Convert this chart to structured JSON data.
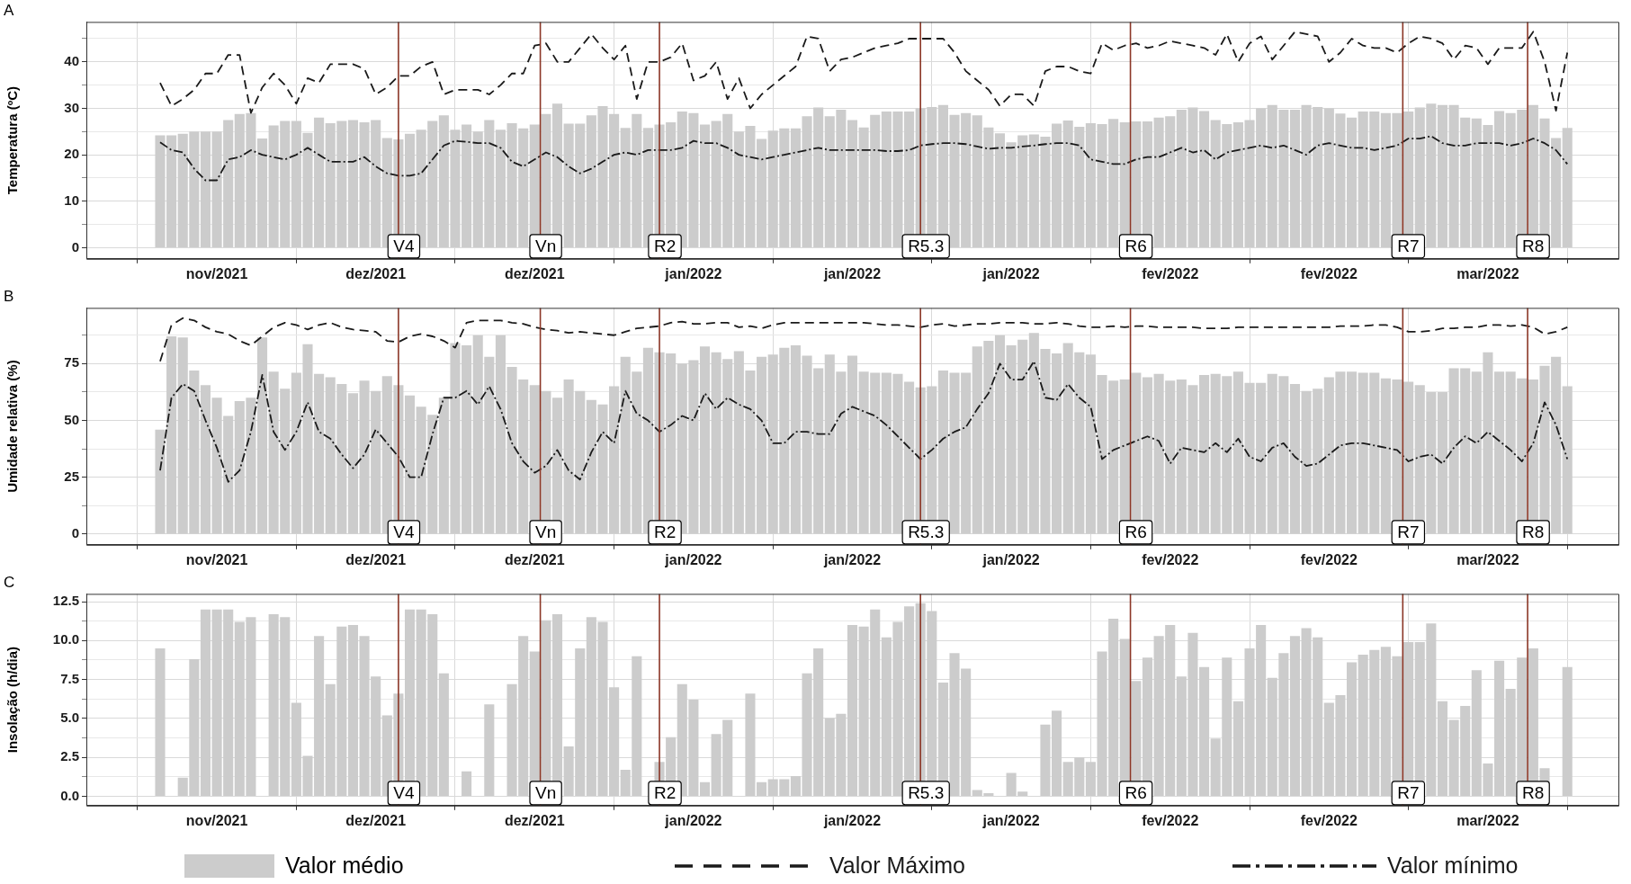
{
  "chart_data": [
    {
      "type": "bar",
      "title": "A",
      "ylabel": "Temperatura (ºC)",
      "x": [
        "2021-11-17",
        "2021-11-18",
        "2021-11-19",
        "2021-11-20",
        "2021-11-21",
        "2021-11-22",
        "2021-11-23",
        "2021-11-24",
        "2021-11-25",
        "2021-11-26",
        "2021-11-27",
        "2021-11-28",
        "2021-11-29",
        "2021-11-30",
        "2021-12-01",
        "2021-12-02",
        "2021-12-03",
        "2021-12-04",
        "2021-12-05",
        "2021-12-06",
        "2021-12-07",
        "2021-12-08",
        "2021-12-09",
        "2021-12-10",
        "2021-12-11",
        "2021-12-12",
        "2021-12-13",
        "2021-12-14",
        "2021-12-15",
        "2021-12-16",
        "2021-12-17",
        "2021-12-18",
        "2021-12-19",
        "2021-12-20",
        "2021-12-21",
        "2021-12-22",
        "2021-12-23",
        "2021-12-24",
        "2021-12-25",
        "2021-12-26",
        "2021-12-27",
        "2021-12-28",
        "2021-12-29",
        "2021-12-30",
        "2021-12-31",
        "2022-01-01",
        "2022-01-02",
        "2022-01-03",
        "2022-01-04",
        "2022-01-05",
        "2022-01-06",
        "2022-01-07",
        "2022-01-08",
        "2022-01-09",
        "2022-01-10",
        "2022-01-11",
        "2022-01-12",
        "2022-01-13",
        "2022-01-14",
        "2022-01-15",
        "2022-01-16",
        "2022-01-17",
        "2022-01-18",
        "2022-01-19",
        "2022-01-20",
        "2022-01-21",
        "2022-01-22",
        "2022-01-23",
        "2022-01-24",
        "2022-01-25",
        "2022-01-26",
        "2022-01-27",
        "2022-01-28",
        "2022-01-29",
        "2022-01-30",
        "2022-01-31",
        "2022-02-01",
        "2022-02-02",
        "2022-02-03",
        "2022-02-04",
        "2022-02-05",
        "2022-02-06",
        "2022-02-07",
        "2022-02-08",
        "2022-02-09",
        "2022-02-10",
        "2022-02-11",
        "2022-02-12",
        "2022-02-13",
        "2022-02-14",
        "2022-02-15",
        "2022-02-16",
        "2022-02-17",
        "2022-02-18",
        "2022-02-19",
        "2022-02-20",
        "2022-02-21",
        "2022-02-22",
        "2022-02-23",
        "2022-02-24",
        "2022-02-25",
        "2022-02-26",
        "2022-02-27",
        "2022-02-28",
        "2022-03-01",
        "2022-03-02",
        "2022-03-03",
        "2022-03-04",
        "2022-03-05",
        "2022-03-06",
        "2022-03-07",
        "2022-03-08",
        "2022-03-09",
        "2022-03-10",
        "2022-03-11",
        "2022-03-12",
        "2022-03-13",
        "2022-03-14",
        "2022-03-15",
        "2022-03-16",
        "2022-03-17",
        "2022-03-18",
        "2022-03-19",
        "2022-03-20",
        "2022-03-21"
      ],
      "series": [
        {
          "name": "Valor médio",
          "color": "#cccccc",
          "values": [
            24.2,
            24.2,
            24.5,
            25,
            25,
            25,
            27.5,
            28.8,
            29,
            23.5,
            26.3,
            27.3,
            27.3,
            24.7,
            28,
            26.8,
            27.3,
            27.5,
            27,
            27.5,
            23.6,
            23.3,
            24.5,
            25.4,
            27.3,
            28.5,
            25.4,
            26.5,
            25,
            27.5,
            25.4,
            26.8,
            25.7,
            26.5,
            28.8,
            31,
            26.7,
            26.7,
            28.5,
            30.5,
            28.8,
            25.8,
            28.8,
            25.8,
            26.5,
            27,
            29.3,
            29,
            26.5,
            27.3,
            28.8,
            25,
            26.2,
            23.4,
            25.2,
            25.7,
            25.7,
            28.3,
            30.2,
            28.3,
            29.7,
            27.5,
            25.9,
            28.6,
            29.3,
            29.3,
            29.3,
            30,
            30.3,
            30.7,
            28.6,
            29,
            28.5,
            25.9,
            24.6,
            22.7,
            24.2,
            24.4,
            23.9,
            26.7,
            27.4,
            26,
            26.8,
            26.6,
            27.7,
            27,
            27.2,
            27.2,
            28,
            28.3,
            29.7,
            30.2,
            29.4,
            27.5,
            26.6,
            27,
            27.5,
            30,
            30.7,
            29.7,
            29.7,
            30.7,
            30.3,
            30,
            28.9,
            28,
            29.3,
            29.3,
            29,
            29,
            29.3,
            30.2,
            31,
            30.7,
            30.7,
            28,
            27.8,
            26.4,
            29.4,
            29,
            29.7,
            30.7,
            27.8,
            23.6,
            25.8
          ]
        },
        {
          "type": "line",
          "name": "Valor Máximo",
          "color": "#1a1a1a",
          "line_style": "dashed",
          "values": [
            35.5,
            30.5,
            32,
            34,
            37.5,
            37.5,
            41.5,
            41.5,
            29,
            34.5,
            37.5,
            35,
            31,
            36.5,
            35.5,
            39.5,
            39.5,
            39.5,
            38.5,
            33,
            34.5,
            37,
            37,
            39,
            40,
            33,
            34,
            34,
            34,
            33,
            35,
            37.5,
            37.5,
            43.5,
            44,
            40,
            40,
            43,
            46,
            43,
            40.5,
            43.5,
            32,
            40,
            40,
            41,
            44,
            36,
            37,
            40,
            32,
            36.5,
            30,
            33,
            35,
            37,
            39,
            45.5,
            45,
            38,
            40.5,
            41,
            42,
            43,
            43.5,
            44,
            45,
            45,
            45,
            45,
            42,
            38,
            36,
            34,
            30.5,
            33,
            33,
            30.5,
            38,
            39,
            39,
            38,
            37.5,
            44,
            42.5,
            43.5,
            44,
            43,
            43.5,
            44.5,
            44,
            43.5,
            43,
            41.5,
            46,
            40,
            44,
            45.5,
            40.5,
            43.5,
            46.5,
            46,
            45.5,
            40,
            42,
            45,
            43.5,
            43,
            43,
            42,
            44,
            45.5,
            45,
            44,
            40.5,
            43.5,
            43,
            39.5,
            43,
            43,
            43,
            46.5,
            40,
            29.5,
            42
          ]
        },
        {
          "type": "line",
          "name": "Valor mínimo",
          "color": "#1a1a1a",
          "line_style": "dashdot",
          "values": [
            22.7,
            21,
            20.5,
            17,
            14.5,
            14.5,
            19,
            19.5,
            21,
            20,
            19.5,
            19,
            20,
            21.5,
            20,
            18.5,
            18.5,
            18.5,
            19.5,
            17.5,
            16,
            15.5,
            15.5,
            16,
            19,
            22,
            23,
            22.8,
            22.5,
            22.5,
            21.5,
            18.5,
            17.5,
            19,
            20.5,
            19.5,
            17.5,
            16,
            17,
            18.5,
            20,
            20.5,
            20,
            21,
            21,
            21,
            21.5,
            23,
            22.5,
            22.5,
            21.5,
            20,
            19.5,
            19,
            19.5,
            20,
            20.5,
            21,
            21.5,
            21,
            21,
            21,
            21,
            21,
            20.8,
            20.8,
            21,
            22,
            22.3,
            22.5,
            22.5,
            22.3,
            21.8,
            21.3,
            21.5,
            21.5,
            21.8,
            22,
            22.3,
            22.5,
            22.5,
            22,
            19,
            18.5,
            18,
            18,
            19,
            19.5,
            19.5,
            20.5,
            21.5,
            20.5,
            21,
            19,
            20.5,
            21,
            21.5,
            22,
            21.5,
            22,
            21,
            20,
            22,
            22.5,
            22,
            21.5,
            21.5,
            21,
            21.5,
            22,
            23.5,
            23.5,
            24,
            22.5,
            22,
            22,
            22.5,
            22.5,
            22.5,
            22,
            22.5,
            23.5,
            22.5,
            21,
            18
          ]
        }
      ],
      "xlim": [
        "2021-11-10T12:00",
        "2022-03-25T12:00"
      ],
      "xticks": [
        {
          "value": "2021-11-22",
          "label": "nov/2021"
        },
        {
          "value": "2021-12-06",
          "label": "dez/2021"
        },
        {
          "value": "2021-12-20",
          "label": "dez/2021"
        },
        {
          "value": "2022-01-03",
          "label": "jan/2022"
        },
        {
          "value": "2022-01-17",
          "label": "jan/2022"
        },
        {
          "value": "2022-01-31",
          "label": "jan/2022"
        },
        {
          "value": "2022-02-14",
          "label": "fev/2022"
        },
        {
          "value": "2022-02-28",
          "label": "fev/2022"
        },
        {
          "value": "2022-03-14",
          "label": "mar/2022"
        }
      ],
      "ylim": [
        -2.4,
        48.6
      ],
      "yticks": [
        0,
        {
          "value": 5,
          "label": null
        },
        10,
        {
          "value": 15,
          "label": null
        },
        20,
        {
          "value": 25,
          "label": null
        },
        30,
        {
          "value": 35,
          "label": null
        },
        40,
        {
          "value": 45,
          "label": null
        }
      ],
      "ref_lines": [
        {
          "axis": "x",
          "value": "2021-12-08",
          "label": "V4",
          "color": "#8b3626"
        },
        {
          "axis": "x",
          "value": "2021-12-20T12:00",
          "label": "Vn",
          "color": "#8b3626"
        },
        {
          "axis": "x",
          "value": "2021-12-31",
          "label": "R2",
          "color": "#8b3626"
        },
        {
          "axis": "x",
          "value": "2022-01-23",
          "label": "R5.3",
          "color": "#8b3626"
        },
        {
          "axis": "x",
          "value": "2022-02-10T12:00",
          "label": "R6",
          "color": "#8b3626"
        },
        {
          "axis": "x",
          "value": "2022-03-06T12:00",
          "label": "R7",
          "color": "#8b3626"
        },
        {
          "axis": "x",
          "value": "2022-03-17T12:00",
          "label": "R8",
          "color": "#8b3626"
        }
      ],
      "grid": true,
      "legend": "bottom"
    },
    {
      "type": "bar",
      "title": "B",
      "ylabel": "Umidade relativa (%)",
      "x": [
        "2021-11-17",
        "2021-11-18",
        "2021-11-19",
        "2021-11-20",
        "2021-11-21",
        "2021-11-22",
        "2021-11-23",
        "2021-11-24",
        "2021-11-25",
        "2021-11-26",
        "2021-11-27",
        "2021-11-28",
        "2021-11-29",
        "2021-11-30",
        "2021-12-01",
        "2021-12-02",
        "2021-12-03",
        "2021-12-04",
        "2021-12-05",
        "2021-12-06",
        "2021-12-07",
        "2021-12-08",
        "2021-12-09",
        "2021-12-10",
        "2021-12-11",
        "2021-12-12",
        "2021-12-13",
        "2021-12-14",
        "2021-12-15",
        "2021-12-16",
        "2021-12-17",
        "2021-12-18",
        "2021-12-19",
        "2021-12-20",
        "2021-12-21",
        "2021-12-22",
        "2021-12-23",
        "2021-12-24",
        "2021-12-25",
        "2021-12-26",
        "2021-12-27",
        "2021-12-28",
        "2021-12-29",
        "2021-12-30",
        "2021-12-31",
        "2022-01-01",
        "2022-01-02",
        "2022-01-03",
        "2022-01-04",
        "2022-01-05",
        "2022-01-06",
        "2022-01-07",
        "2022-01-08",
        "2022-01-09",
        "2022-01-10",
        "2022-01-11",
        "2022-01-12",
        "2022-01-13",
        "2022-01-14",
        "2022-01-15",
        "2022-01-16",
        "2022-01-17",
        "2022-01-18",
        "2022-01-19",
        "2022-01-20",
        "2022-01-21",
        "2022-01-22",
        "2022-01-23",
        "2022-01-24",
        "2022-01-25",
        "2022-01-26",
        "2022-01-27",
        "2022-01-28",
        "2022-01-29",
        "2022-01-30",
        "2022-01-31",
        "2022-02-01",
        "2022-02-02",
        "2022-02-03",
        "2022-02-04",
        "2022-02-05",
        "2022-02-06",
        "2022-02-07",
        "2022-02-08",
        "2022-02-09",
        "2022-02-10",
        "2022-02-11",
        "2022-02-12",
        "2022-02-13",
        "2022-02-14",
        "2022-02-15",
        "2022-02-16",
        "2022-02-17",
        "2022-02-18",
        "2022-02-19",
        "2022-02-20",
        "2022-02-21",
        "2022-02-22",
        "2022-02-23",
        "2022-02-24",
        "2022-02-25",
        "2022-02-26",
        "2022-02-27",
        "2022-02-28",
        "2022-03-01",
        "2022-03-02",
        "2022-03-03",
        "2022-03-04",
        "2022-03-05",
        "2022-03-06",
        "2022-03-07",
        "2022-03-08",
        "2022-03-09",
        "2022-03-10",
        "2022-03-11",
        "2022-03-12",
        "2022-03-13",
        "2022-03-14",
        "2022-03-15",
        "2022-03-16",
        "2022-03-17",
        "2022-03-18",
        "2022-03-19",
        "2022-03-20",
        "2022-03-21"
      ],
      "series": [
        {
          "color": "#cccccc",
          "values": [
            46,
            87,
            86.5,
            72,
            65.5,
            60,
            52,
            58.5,
            60,
            86.5,
            71.5,
            64,
            71,
            83.5,
            70.5,
            69,
            66,
            62,
            67.5,
            63,
            69.5,
            65.5,
            61,
            56,
            52.5,
            60,
            84,
            83,
            87.5,
            78,
            87.5,
            73.5,
            68,
            65.5,
            63,
            60,
            68,
            63,
            59,
            57,
            65,
            78,
            71.5,
            82,
            80,
            79.5,
            75,
            76.5,
            82.5,
            80,
            77,
            80.5,
            72,
            78,
            79,
            82,
            83,
            78.5,
            73,
            79,
            71.5,
            78.5,
            71.5,
            71,
            71,
            70.5,
            67,
            64.5,
            65,
            72,
            71,
            71,
            82.5,
            85,
            87.5,
            83,
            85.5,
            88.5,
            81.5,
            79.5,
            84,
            80,
            79,
            70,
            67.5,
            68,
            71,
            69,
            70.5,
            67.5,
            68,
            65.5,
            70,
            70.5,
            69.5,
            71.5,
            66.5,
            66.5,
            70.5,
            69.5,
            66,
            63,
            64,
            69,
            71.5,
            71.5,
            71,
            71,
            68.5,
            68,
            67,
            65.5,
            62.5,
            62.5,
            73,
            73,
            71.5,
            80,
            71.5,
            71.5,
            68.5,
            68,
            74,
            78,
            65
          ]
        },
        {
          "type": "line",
          "color": "#1a1a1a",
          "line_style": "dashed",
          "values": [
            76,
            92,
            95,
            94,
            91,
            89,
            88,
            85,
            83,
            87,
            91,
            93,
            92,
            90,
            92,
            93,
            91,
            90,
            89.5,
            89,
            85,
            84.5,
            87,
            88,
            87,
            85,
            82,
            93,
            94,
            94,
            94,
            93,
            92.5,
            91,
            90,
            89.5,
            88.5,
            89,
            88.5,
            88,
            87.5,
            89,
            90.5,
            91,
            91.5,
            93,
            93.5,
            92.5,
            92.5,
            93,
            93,
            91,
            91.5,
            90.5,
            92,
            93,
            93,
            93,
            93,
            93,
            93,
            93,
            93,
            92.5,
            92,
            92,
            91.5,
            91,
            92,
            92.5,
            91.5,
            92,
            92.5,
            92.5,
            93,
            93,
            93,
            92.5,
            92.5,
            93,
            92.5,
            91.5,
            91,
            91,
            91.5,
            91,
            91.5,
            91.5,
            91,
            91,
            91,
            91,
            90.5,
            90.5,
            90.5,
            91,
            91,
            91,
            91,
            91,
            91,
            91,
            91,
            91,
            91.5,
            91.5,
            91.5,
            92,
            92,
            91,
            89,
            89,
            89.5,
            90.5,
            90.5,
            91,
            91,
            92,
            92,
            91.5,
            92,
            91,
            88,
            89,
            91
          ]
        },
        {
          "type": "line",
          "color": "#1a1a1a",
          "line_style": "dashdot",
          "values": [
            28,
            60,
            66,
            63,
            50,
            38,
            23,
            28,
            45,
            70,
            45,
            37,
            45,
            58,
            45,
            42,
            35,
            29,
            35,
            46,
            40,
            34,
            25,
            25,
            44,
            60,
            60,
            63,
            57,
            65,
            55,
            40,
            32,
            27,
            30,
            37,
            28,
            24,
            36,
            45,
            40,
            63,
            53,
            50,
            45,
            48,
            52,
            50,
            62,
            55,
            60,
            57,
            55,
            50,
            40,
            40,
            45,
            45,
            44,
            44,
            53,
            56,
            54,
            52,
            48,
            43,
            38,
            33,
            37,
            42,
            45,
            47,
            55,
            62,
            75,
            68,
            68,
            76,
            60,
            59,
            66,
            60,
            56,
            33,
            37,
            39,
            41,
            43,
            41,
            31,
            38,
            37,
            36,
            40,
            36,
            42,
            34,
            32,
            38,
            40,
            34,
            30,
            31,
            35,
            39,
            40,
            40,
            39,
            38,
            37,
            32,
            34,
            35,
            31,
            38,
            43,
            40,
            45,
            41,
            37,
            32,
            40,
            58,
            48,
            33
          ]
        }
      ],
      "xlim": [
        "2021-11-10T12:00",
        "2022-03-25T12:00"
      ],
      "xticks": [
        {
          "value": "2021-11-22",
          "label": "nov/2021"
        },
        {
          "value": "2021-12-06",
          "label": "dez/2021"
        },
        {
          "value": "2021-12-20",
          "label": "dez/2021"
        },
        {
          "value": "2022-01-03",
          "label": "jan/2022"
        },
        {
          "value": "2022-01-17",
          "label": "jan/2022"
        },
        {
          "value": "2022-01-31",
          "label": "jan/2022"
        },
        {
          "value": "2022-02-14",
          "label": "fev/2022"
        },
        {
          "value": "2022-02-28",
          "label": "fev/2022"
        },
        {
          "value": "2022-03-14",
          "label": "mar/2022"
        }
      ],
      "ylim": [
        -4.7,
        99.5
      ],
      "yticks": [
        0,
        {
          "value": 12.5,
          "label": null
        },
        25,
        {
          "value": 37.5,
          "label": null
        },
        50,
        {
          "value": 62.5,
          "label": null
        },
        75,
        {
          "value": 87.5,
          "label": null
        }
      ],
      "ref_lines": [
        {
          "axis": "x",
          "value": "2021-12-08",
          "label": "V4",
          "color": "#8b3626"
        },
        {
          "axis": "x",
          "value": "2021-12-20T12:00",
          "label": "Vn",
          "color": "#8b3626"
        },
        {
          "axis": "x",
          "value": "2021-12-31",
          "label": "R2",
          "color": "#8b3626"
        },
        {
          "axis": "x",
          "value": "2022-01-23",
          "label": "R5.3",
          "color": "#8b3626"
        },
        {
          "axis": "x",
          "value": "2022-02-10T12:00",
          "label": "R6",
          "color": "#8b3626"
        },
        {
          "axis": "x",
          "value": "2022-03-06T12:00",
          "label": "R7",
          "color": "#8b3626"
        },
        {
          "axis": "x",
          "value": "2022-03-17T12:00",
          "label": "R8",
          "color": "#8b3626"
        }
      ],
      "grid": true
    },
    {
      "type": "bar",
      "title": "C",
      "ylabel": "Insolação (h/dia)",
      "x": [
        "2021-11-17",
        "2021-11-18",
        "2021-11-19",
        "2021-11-20",
        "2021-11-21",
        "2021-11-22",
        "2021-11-23",
        "2021-11-24",
        "2021-11-25",
        "2021-11-26",
        "2021-11-27",
        "2021-11-28",
        "2021-11-29",
        "2021-11-30",
        "2021-12-01",
        "2021-12-02",
        "2021-12-03",
        "2021-12-04",
        "2021-12-05",
        "2021-12-06",
        "2021-12-07",
        "2021-12-08",
        "2021-12-09",
        "2021-12-10",
        "2021-12-11",
        "2021-12-12",
        "2021-12-13",
        "2021-12-14",
        "2021-12-15",
        "2021-12-16",
        "2021-12-17",
        "2021-12-18",
        "2021-12-19",
        "2021-12-20",
        "2021-12-21",
        "2021-12-22",
        "2021-12-23",
        "2021-12-24",
        "2021-12-25",
        "2021-12-26",
        "2021-12-27",
        "2021-12-28",
        "2021-12-29",
        "2021-12-30",
        "2021-12-31",
        "2022-01-01",
        "2022-01-02",
        "2022-01-03",
        "2022-01-04",
        "2022-01-05",
        "2022-01-06",
        "2022-01-07",
        "2022-01-08",
        "2022-01-09",
        "2022-01-10",
        "2022-01-11",
        "2022-01-12",
        "2022-01-13",
        "2022-01-14",
        "2022-01-15",
        "2022-01-16",
        "2022-01-17",
        "2022-01-18",
        "2022-01-19",
        "2022-01-20",
        "2022-01-21",
        "2022-01-22",
        "2022-01-23",
        "2022-01-24",
        "2022-01-25",
        "2022-01-26",
        "2022-01-27",
        "2022-01-28",
        "2022-01-29",
        "2022-01-30",
        "2022-01-31",
        "2022-02-01",
        "2022-02-02",
        "2022-02-03",
        "2022-02-04",
        "2022-02-05",
        "2022-02-06",
        "2022-02-07",
        "2022-02-08",
        "2022-02-09",
        "2022-02-10",
        "2022-02-11",
        "2022-02-12",
        "2022-02-13",
        "2022-02-14",
        "2022-02-15",
        "2022-02-16",
        "2022-02-17",
        "2022-02-18",
        "2022-02-19",
        "2022-02-20",
        "2022-02-21",
        "2022-02-22",
        "2022-02-23",
        "2022-02-24",
        "2022-02-25",
        "2022-02-26",
        "2022-02-27",
        "2022-02-28",
        "2022-03-01",
        "2022-03-02",
        "2022-03-03",
        "2022-03-04",
        "2022-03-05",
        "2022-03-06",
        "2022-03-07",
        "2022-03-08",
        "2022-03-09",
        "2022-03-10",
        "2022-03-11",
        "2022-03-12",
        "2022-03-13",
        "2022-03-14",
        "2022-03-15",
        "2022-03-16",
        "2022-03-17",
        "2022-03-18",
        "2022-03-19",
        "2022-03-20",
        "2022-03-21"
      ],
      "series": [
        {
          "color": "#cccccc",
          "values": [
            9.5,
            null,
            1.2,
            8.8,
            12,
            12,
            12,
            11.2,
            11.5,
            null,
            11.7,
            11.5,
            6,
            2.6,
            10.3,
            7.2,
            10.9,
            11,
            10.3,
            7.7,
            5.2,
            6.6,
            12,
            12,
            11.7,
            7.9,
            null,
            1.6,
            null,
            5.9,
            null,
            7.2,
            10.3,
            9.3,
            11.3,
            11.7,
            3.2,
            9.5,
            11.5,
            11.2,
            7,
            1.7,
            9,
            null,
            2.2,
            3.8,
            7.2,
            6.2,
            0.9,
            4,
            4.9,
            null,
            6.6,
            0.9,
            1.1,
            1.1,
            1.3,
            7.9,
            9.5,
            5.0,
            5.3,
            11,
            10.9,
            12,
            10.2,
            11.2,
            12.2,
            12.4,
            11.9,
            7.3,
            9.2,
            8.2,
            0.4,
            0.2,
            null,
            1.5,
            0.3,
            null,
            4.6,
            5.5,
            2.2,
            2.5,
            2.2,
            9.3,
            11.4,
            10.1,
            7.4,
            8.9,
            10.3,
            11,
            7.7,
            10.5,
            8.3,
            3.7,
            8.9,
            6.1,
            9.5,
            11,
            7.6,
            9.2,
            10.3,
            10.8,
            10.2,
            6,
            6.5,
            8.6,
            9.1,
            9.4,
            9.6,
            9,
            9.9,
            9.9,
            11.1,
            6.1,
            4.9,
            5.8,
            8.1,
            2.1,
            8.7,
            6.9,
            8.9,
            9.5,
            1.8,
            null,
            8.3
          ]
        }
      ],
      "xlim": [
        "2021-11-10T12:00",
        "2022-03-25T12:00"
      ],
      "xticks": [
        {
          "value": "2021-11-22",
          "label": "nov/2021"
        },
        {
          "value": "2021-12-06",
          "label": "dez/2021"
        },
        {
          "value": "2021-12-20",
          "label": "dez/2021"
        },
        {
          "value": "2022-01-03",
          "label": "jan/2022"
        },
        {
          "value": "2022-01-17",
          "label": "jan/2022"
        },
        {
          "value": "2022-01-31",
          "label": "jan/2022"
        },
        {
          "value": "2022-02-14",
          "label": "fev/2022"
        },
        {
          "value": "2022-02-28",
          "label": "fev/2022"
        },
        {
          "value": "2022-03-14",
          "label": "mar/2022"
        }
      ],
      "ylim": [
        -0.6,
        13.0
      ],
      "yticks": [
        {
          "value": 0,
          "label": "0.0"
        },
        {
          "value": 1.25,
          "label": null
        },
        {
          "value": 2.5,
          "label": "2.5"
        },
        {
          "value": 3.75,
          "label": null
        },
        {
          "value": 5,
          "label": "5.0"
        },
        {
          "value": 6.25,
          "label": null
        },
        {
          "value": 7.5,
          "label": "7.5"
        },
        {
          "value": 8.75,
          "label": null
        },
        {
          "value": 10,
          "label": "10.0"
        },
        {
          "value": 11.25,
          "label": null
        },
        {
          "value": 12.5,
          "label": "12.5"
        }
      ],
      "ref_lines": [
        {
          "axis": "x",
          "value": "2021-12-08",
          "label": "V4",
          "color": "#8b3626"
        },
        {
          "axis": "x",
          "value": "2021-12-20T12:00",
          "label": "Vn",
          "color": "#8b3626"
        },
        {
          "axis": "x",
          "value": "2021-12-31",
          "label": "R2",
          "color": "#8b3626"
        },
        {
          "axis": "x",
          "value": "2022-01-23",
          "label": "R5.3",
          "color": "#8b3626"
        },
        {
          "axis": "x",
          "value": "2022-02-10T12:00",
          "label": "R6",
          "color": "#8b3626"
        },
        {
          "axis": "x",
          "value": "2022-03-06T12:00",
          "label": "R7",
          "color": "#8b3626"
        },
        {
          "axis": "x",
          "value": "2022-03-17T12:00",
          "label": "R8",
          "color": "#8b3626"
        }
      ],
      "grid": true
    }
  ]
}
